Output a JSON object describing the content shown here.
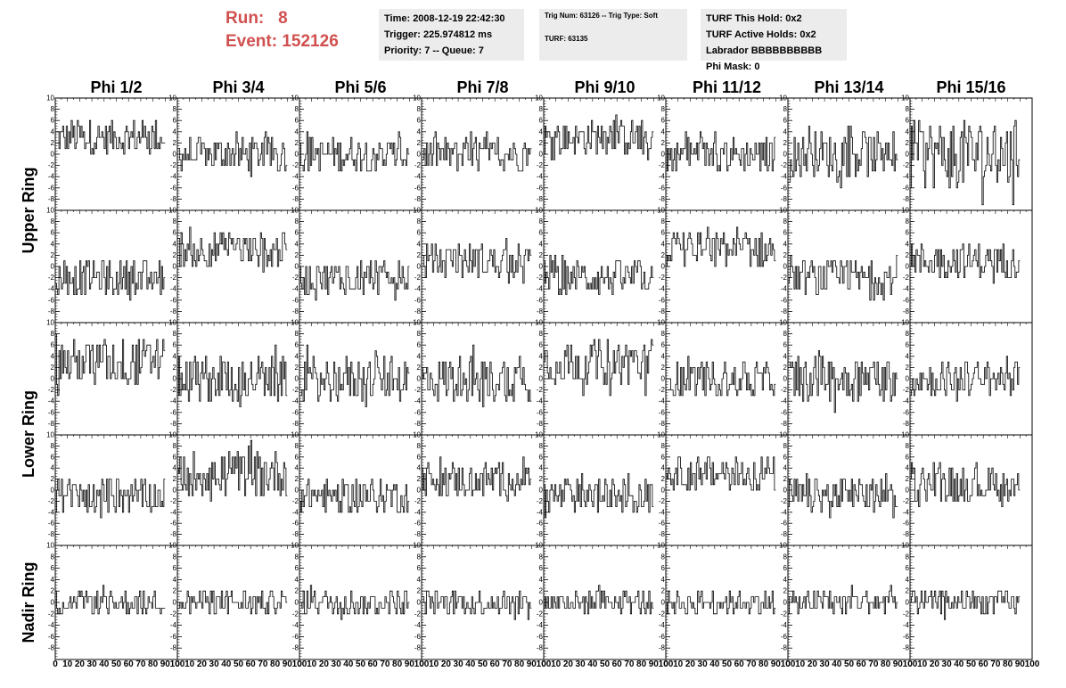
{
  "header": {
    "run_label": "Run:",
    "run_value": "8",
    "event_label": "Event:",
    "event_value": "152126"
  },
  "info_time": {
    "time": "Time: 2008-12-19 22:42:30",
    "trigger": "Trigger: 225.974812 ms",
    "priority": "Priority: 7 -- Queue: 7"
  },
  "info_trig": {
    "trig_line": "Trig Num: 63126 -- Trig Type: Soft",
    "turf_line": "TURF: 63135"
  },
  "info_turf": {
    "this_hold": "TURF This Hold: 0x2",
    "active_holds": "TURF Active Holds: 0x2",
    "labrador": "Labrador BBBBBBBBBB",
    "phi_mask": "Phi Mask: 0"
  },
  "colors": {
    "header_red": "#d0504f",
    "info_bg": "#ececec",
    "trace": "#000000"
  },
  "chart_data": {
    "type": "line",
    "columns": [
      "Phi 1/2",
      "Phi 3/4",
      "Phi 5/6",
      "Phi 7/8",
      "Phi 9/10",
      "Phi 11/12",
      "Phi 13/14",
      "Phi 15/16"
    ],
    "rows": [
      "Upper Ring",
      "Upper Ring",
      "Lower Ring",
      "Lower Ring",
      "Nadir Ring"
    ],
    "row_labels": [
      {
        "text": "Upper Ring",
        "rows": [
          0,
          1
        ]
      },
      {
        "text": "Lower Ring",
        "rows": [
          2,
          3
        ]
      },
      {
        "text": "Nadir Ring",
        "rows": [
          4
        ]
      }
    ],
    "ylim": [
      -10,
      10
    ],
    "y_ticks": [
      "-8",
      "-6",
      "-4",
      "-2",
      "0",
      "2",
      "4",
      "6",
      "8",
      "10"
    ],
    "xlim": [
      0,
      100
    ],
    "x_ticks": [
      "0",
      "10",
      "20",
      "30",
      "40",
      "50",
      "60",
      "70",
      "80",
      "90",
      "100"
    ],
    "samples_per_trace": 90,
    "panel_baselines": [
      [
        3,
        0,
        0,
        0,
        3,
        0,
        0,
        0
      ],
      [
        -2,
        3,
        -2,
        1,
        -2,
        3,
        -2,
        1
      ],
      [
        3,
        0,
        0,
        0,
        3,
        0,
        0,
        0
      ],
      [
        -1,
        3,
        -1,
        2,
        -1,
        3,
        -1,
        1
      ],
      [
        0,
        0,
        0,
        0,
        0,
        0,
        0,
        0
      ]
    ],
    "panel_amplitudes": [
      [
        3,
        3,
        3,
        3,
        3,
        3,
        4,
        6
      ],
      [
        3,
        3,
        3,
        3,
        3,
        3,
        3,
        3
      ],
      [
        4,
        4,
        4,
        4,
        4,
        3,
        4,
        3
      ],
      [
        3,
        4,
        3,
        3,
        3,
        3,
        3,
        3
      ],
      [
        2,
        2,
        2,
        2,
        2,
        2,
        2,
        2
      ]
    ]
  }
}
